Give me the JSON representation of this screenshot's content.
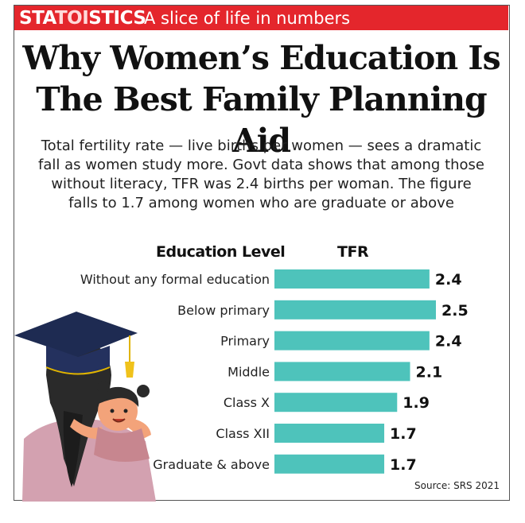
{
  "header": {
    "brand_part1": "STA",
    "brand_part2": "TOI",
    "brand_part3": "STICS",
    "tagline": "A slice of life in numbers"
  },
  "title_line1": "Why Women’s Education Is",
  "title_line2": "The Best Family Planning Aid",
  "subtitle_lines": [
    "Total fertility rate — live births per women — sees a dramatic",
    "fall as women study more. Govt data shows that among those",
    "without literacy, TFR was 2.4 births per woman. The figure",
    "falls to 1.7 among women who are graduate or above"
  ],
  "colors": {
    "header": "#e4262c",
    "bar": "#4ec3bb"
  },
  "chart_data": {
    "type": "bar",
    "orientation": "horizontal",
    "category_header": "Education Level",
    "value_header": "TFR",
    "categories": [
      "Without any formal education",
      "Below primary",
      "Primary",
      "Middle",
      "Class X",
      "Class XII",
      "Graduate & above"
    ],
    "values": [
      2.4,
      2.5,
      2.4,
      2.1,
      1.9,
      1.7,
      1.7
    ],
    "value_labels": [
      "2.4",
      "2.5",
      "2.4",
      "2.1",
      "1.9",
      "1.7",
      "1.7"
    ]
  },
  "source": "Source: SRS 2021",
  "illustration": {
    "icon": "mother-child-graduation-icon"
  }
}
